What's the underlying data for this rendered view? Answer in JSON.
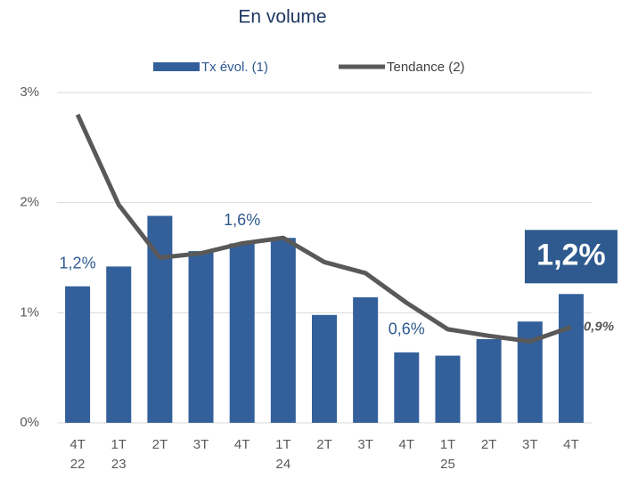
{
  "chart_data": {
    "type": "bar",
    "title": "En volume",
    "categories": [
      "4T 22",
      "1T 23",
      "2T",
      "3T",
      "4T",
      "1T 24",
      "2T",
      "3T",
      "4T",
      "1T 25",
      "2T",
      "3T",
      "4T"
    ],
    "series": [
      {
        "name": "Tx évol. (1)",
        "type": "bar",
        "color": "#33609a",
        "values": [
          1.24,
          1.42,
          1.88,
          1.56,
          1.63,
          1.68,
          0.98,
          1.14,
          0.64,
          0.61,
          0.76,
          0.92,
          1.17
        ],
        "value_labels": [
          "1,2%",
          null,
          null,
          null,
          "1,6%",
          null,
          null,
          null,
          "0,6%",
          null,
          null,
          null,
          "1,2%"
        ]
      },
      {
        "name": "Tendance (2)",
        "type": "line",
        "color": "#595959",
        "values": [
          2.8,
          1.98,
          1.5,
          1.54,
          1.63,
          1.68,
          1.46,
          1.36,
          1.09,
          0.85,
          0.79,
          0.74,
          0.87
        ],
        "value_labels": [
          null,
          null,
          null,
          null,
          null,
          null,
          null,
          null,
          null,
          null,
          null,
          null,
          "0,9%"
        ]
      }
    ],
    "ylim": [
      0,
      3
    ],
    "yticks": [
      {
        "value": 0,
        "label": "0%"
      },
      {
        "value": 1,
        "label": "1%"
      },
      {
        "value": 2,
        "label": "2%"
      },
      {
        "value": 3,
        "label": "3%"
      }
    ],
    "grid": true
  }
}
